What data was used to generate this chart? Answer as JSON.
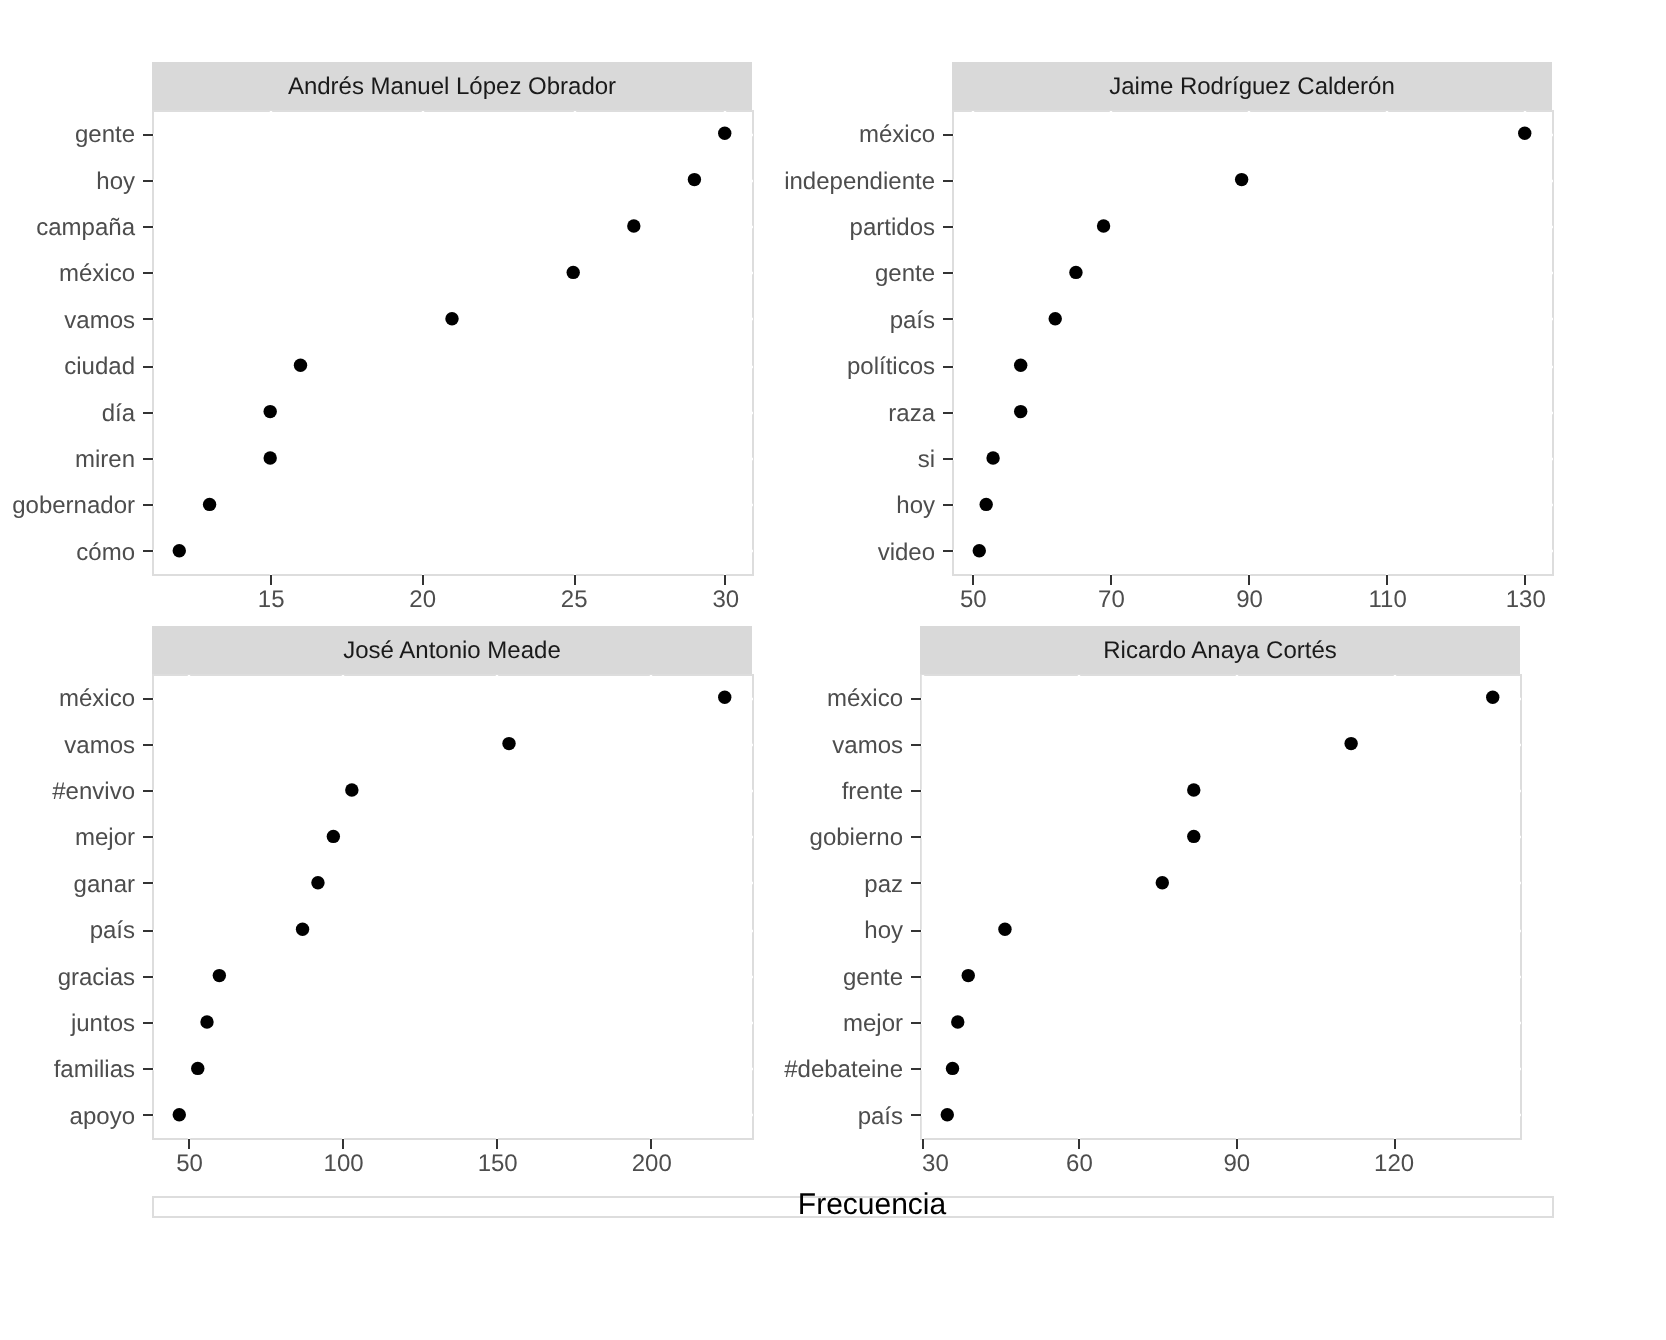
{
  "chart_data": [
    {
      "type": "scatter",
      "title": "Andrés Manuel López Obrador",
      "categories": [
        "gente",
        "hoy",
        "campaña",
        "méxico",
        "vamos",
        "ciudad",
        "día",
        "miren",
        "gobernador",
        "cómo"
      ],
      "values": [
        30,
        29,
        27,
        25,
        21,
        16,
        15,
        15,
        13,
        12
      ],
      "orientation": "horizontal",
      "color": "#000000",
      "xlim": [
        11.1,
        30.9
      ],
      "xticks": [
        15,
        20,
        25,
        30
      ],
      "grid": true,
      "marker": "circle"
    },
    {
      "type": "scatter",
      "title": "Jaime Rodríguez Calderón",
      "categories": [
        "méxico",
        "independiente",
        "partidos",
        "gente",
        "país",
        "políticos",
        "raza",
        "si",
        "hoy",
        "video"
      ],
      "values": [
        130,
        89,
        69,
        65,
        62,
        57,
        57,
        53,
        52,
        51
      ],
      "orientation": "horizontal",
      "color": "#000000",
      "xlim": [
        47.05,
        133.95
      ],
      "xticks": [
        50,
        70,
        90,
        110,
        130
      ],
      "grid": true,
      "marker": "circle"
    },
    {
      "type": "scatter",
      "title": "José Antonio Meade",
      "xlabel": "Frecuencia",
      "categories": [
        "méxico",
        "vamos",
        "#envivo",
        "mejor",
        "ganar",
        "país",
        "gracias",
        "juntos",
        "familias",
        "apoyo"
      ],
      "values": [
        224,
        154,
        103,
        97,
        92,
        87,
        60,
        56,
        53,
        47
      ],
      "orientation": "horizontal",
      "color": "#000000",
      "xlim": [
        38.15,
        232.85
      ],
      "xticks": [
        50,
        100,
        150,
        200
      ],
      "grid": true,
      "marker": "circle"
    },
    {
      "type": "scatter",
      "title": "Ricardo Anaya Cortés",
      "categories": [
        "méxico",
        "vamos",
        "frente",
        "gobierno",
        "paz",
        "hoy",
        "gente",
        "mejor",
        "#debateine",
        "país"
      ],
      "values": [
        139,
        112,
        82,
        82,
        76,
        46,
        39,
        37,
        36,
        35
      ],
      "orientation": "horizontal",
      "color": "#000000",
      "xlim": [
        29.8,
        144.2
      ],
      "xticks": [
        30,
        60,
        90,
        120
      ],
      "grid": true,
      "marker": "circle"
    }
  ]
}
